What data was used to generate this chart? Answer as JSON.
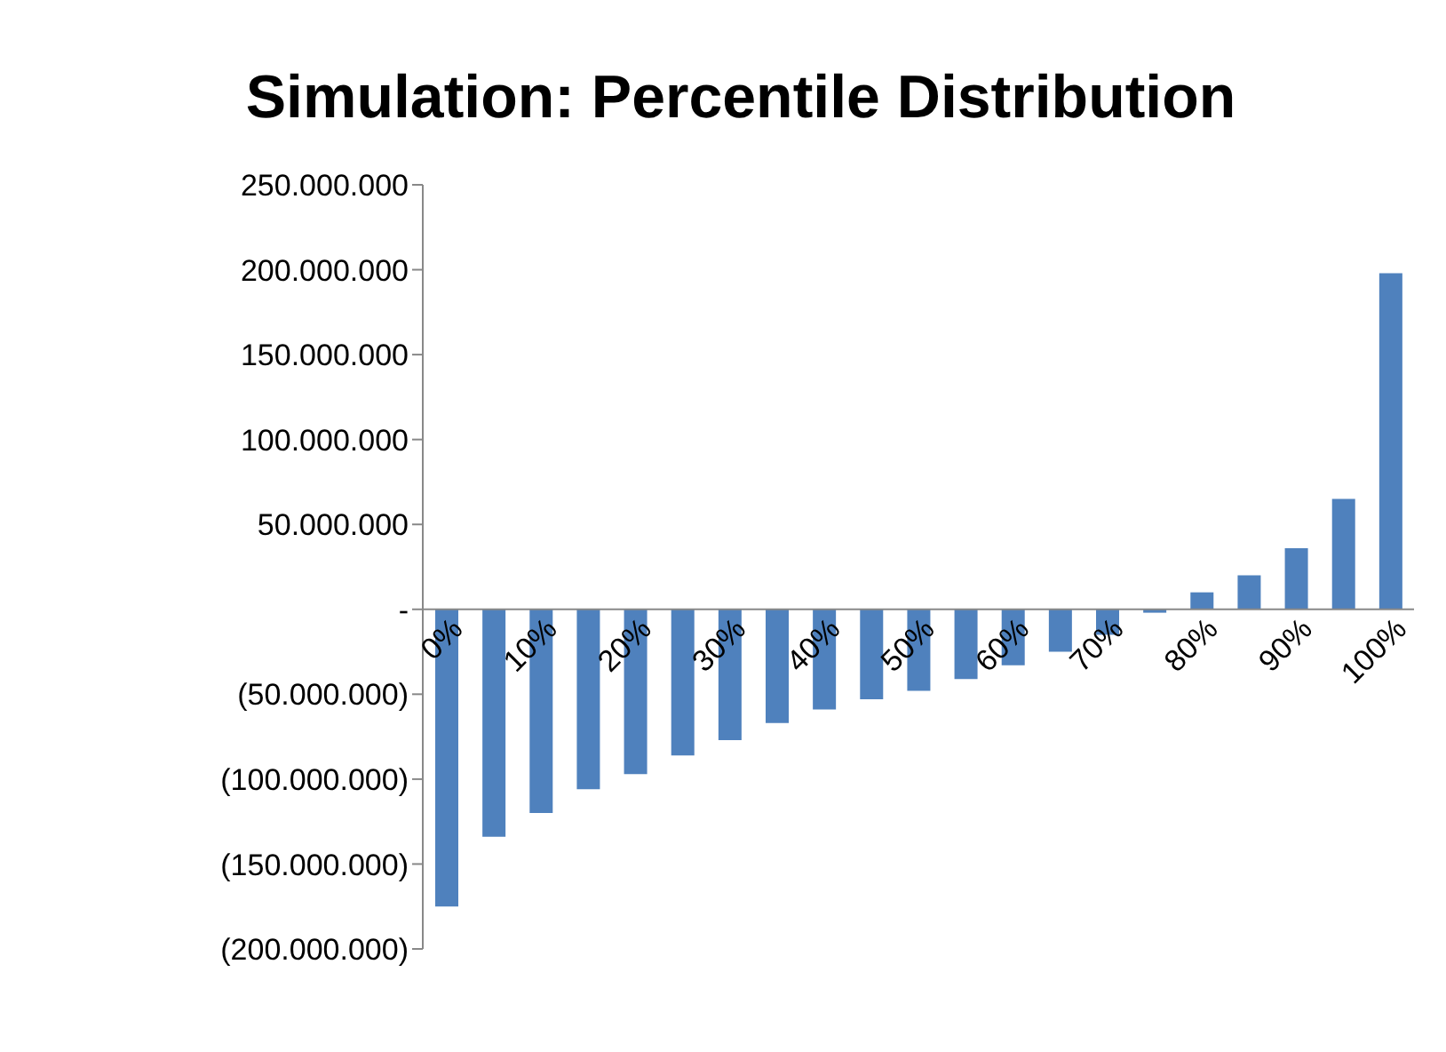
{
  "chart_data": {
    "type": "bar",
    "title": "Simulation: Percentile Distribution",
    "categories": [
      "0%",
      null,
      "10%",
      null,
      "20%",
      null,
      "30%",
      null,
      "40%",
      null,
      "50%",
      null,
      "60%",
      null,
      "70%",
      null,
      "80%",
      null,
      "90%",
      null,
      "100%"
    ],
    "values": [
      -175000000,
      -134000000,
      -120000000,
      -106000000,
      -97000000,
      -86000000,
      -77000000,
      -67000000,
      -59000000,
      -53000000,
      -48000000,
      -41000000,
      -33000000,
      -25000000,
      -15000000,
      -2000000,
      10000000,
      20000000,
      36000000,
      65000000,
      198000000
    ],
    "color": "#4f81bd",
    "ylim": [
      -200000000,
      250000000
    ],
    "yticks": [
      {
        "value": -200000000,
        "label": "(200.000.000)"
      },
      {
        "value": -150000000,
        "label": "(150.000.000)"
      },
      {
        "value": -100000000,
        "label": "(100.000.000)"
      },
      {
        "value": -50000000,
        "label": "(50.000.000)"
      },
      {
        "value": 0,
        "label": "-"
      },
      {
        "value": 50000000,
        "label": "50.000.000"
      },
      {
        "value": 100000000,
        "label": "100.000.000"
      },
      {
        "value": 150000000,
        "label": "150.000.000"
      },
      {
        "value": 200000000,
        "label": "200.000.000"
      },
      {
        "value": 250000000,
        "label": "250.000.000"
      }
    ],
    "legend": false
  }
}
